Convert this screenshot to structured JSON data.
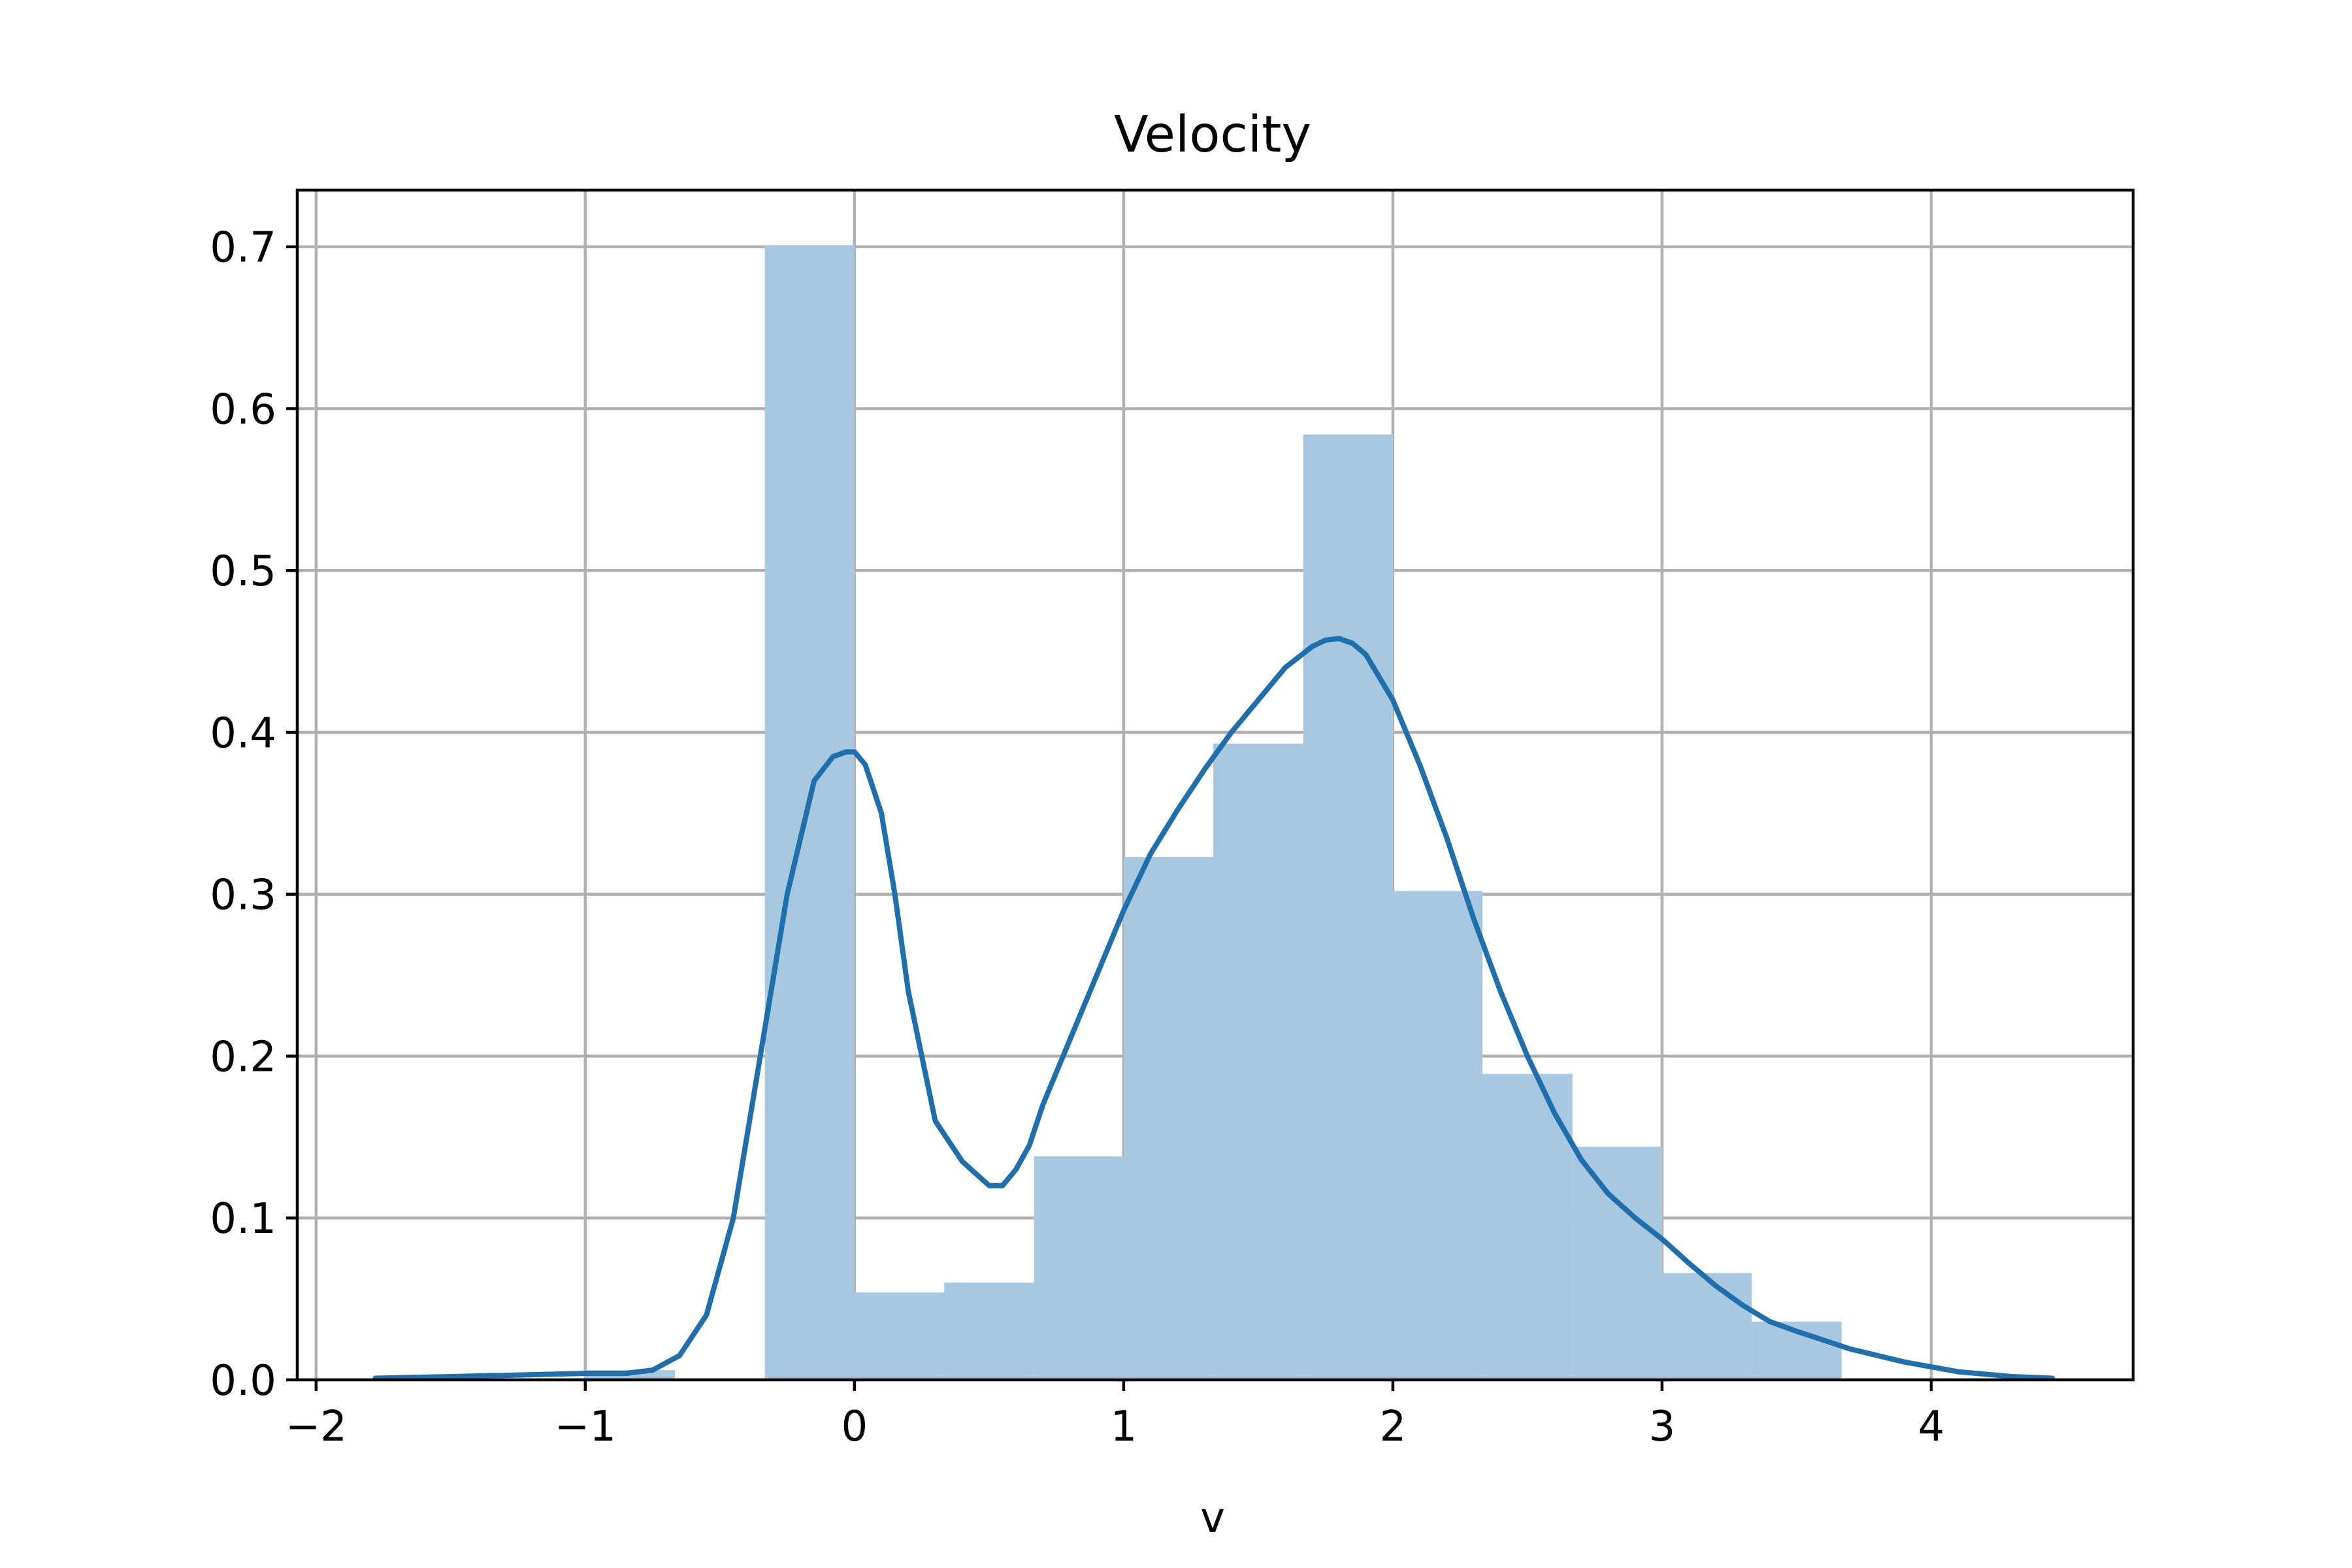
{
  "chart_data": {
    "type": "bar",
    "title": "Velocity",
    "xlabel": "v",
    "ylabel": "",
    "xlim": [
      -2.07,
      4.75
    ],
    "ylim": [
      0,
      0.735
    ],
    "grid": true,
    "xticks": [
      -2,
      -1,
      0,
      1,
      2,
      3,
      4
    ],
    "xtick_labels": [
      "−2",
      "−1",
      "0",
      "1",
      "2",
      "3",
      "4"
    ],
    "yticks": [
      0.0,
      0.1,
      0.2,
      0.3,
      0.4,
      0.5,
      0.6,
      0.7
    ],
    "ytick_labels": [
      "0.0",
      "0.1",
      "0.2",
      "0.3",
      "0.4",
      "0.5",
      "0.6",
      "0.7"
    ],
    "histogram": {
      "color": "#a6c8e0",
      "bins": [
        {
          "x0": -1.0,
          "x1": -0.667,
          "value": 0.006
        },
        {
          "x0": -0.333,
          "x1": 0.0,
          "value": 0.701
        },
        {
          "x0": 0.0,
          "x1": 0.333,
          "value": 0.054
        },
        {
          "x0": 0.333,
          "x1": 0.667,
          "value": 0.06
        },
        {
          "x0": 0.667,
          "x1": 1.0,
          "value": 0.138
        },
        {
          "x0": 1.0,
          "x1": 1.333,
          "value": 0.323
        },
        {
          "x0": 1.333,
          "x1": 1.667,
          "value": 0.393
        },
        {
          "x0": 1.667,
          "x1": 2.0,
          "value": 0.584
        },
        {
          "x0": 2.0,
          "x1": 2.333,
          "value": 0.302
        },
        {
          "x0": 2.333,
          "x1": 2.667,
          "value": 0.189
        },
        {
          "x0": 2.667,
          "x1": 3.0,
          "value": 0.144
        },
        {
          "x0": 3.0,
          "x1": 3.333,
          "value": 0.066
        },
        {
          "x0": 3.333,
          "x1": 3.667,
          "value": 0.036
        }
      ]
    },
    "kde": {
      "color": "#1f6fad",
      "x": [
        -1.78,
        -1.5,
        -1.25,
        -1.0,
        -0.85,
        -0.75,
        -0.65,
        -0.55,
        -0.45,
        -0.35,
        -0.25,
        -0.15,
        -0.08,
        -0.03,
        0.0,
        0.04,
        0.1,
        0.15,
        0.2,
        0.3,
        0.4,
        0.5,
        0.55,
        0.6,
        0.65,
        0.7,
        0.8,
        0.9,
        1.0,
        1.1,
        1.2,
        1.3,
        1.4,
        1.5,
        1.6,
        1.7,
        1.75,
        1.8,
        1.85,
        1.9,
        2.0,
        2.1,
        2.2,
        2.3,
        2.4,
        2.5,
        2.6,
        2.7,
        2.8,
        2.9,
        3.0,
        3.1,
        3.2,
        3.3,
        3.4,
        3.5,
        3.7,
        3.9,
        4.1,
        4.3,
        4.45
      ],
      "y": [
        0.001,
        0.002,
        0.003,
        0.004,
        0.004,
        0.006,
        0.015,
        0.04,
        0.1,
        0.2,
        0.3,
        0.37,
        0.385,
        0.388,
        0.388,
        0.38,
        0.35,
        0.3,
        0.24,
        0.16,
        0.135,
        0.12,
        0.12,
        0.13,
        0.145,
        0.17,
        0.21,
        0.25,
        0.29,
        0.325,
        0.352,
        0.377,
        0.4,
        0.42,
        0.44,
        0.453,
        0.457,
        0.458,
        0.455,
        0.448,
        0.42,
        0.38,
        0.335,
        0.285,
        0.24,
        0.2,
        0.165,
        0.136,
        0.115,
        0.1,
        0.087,
        0.072,
        0.058,
        0.046,
        0.036,
        0.03,
        0.019,
        0.011,
        0.005,
        0.002,
        0.001
      ]
    }
  }
}
